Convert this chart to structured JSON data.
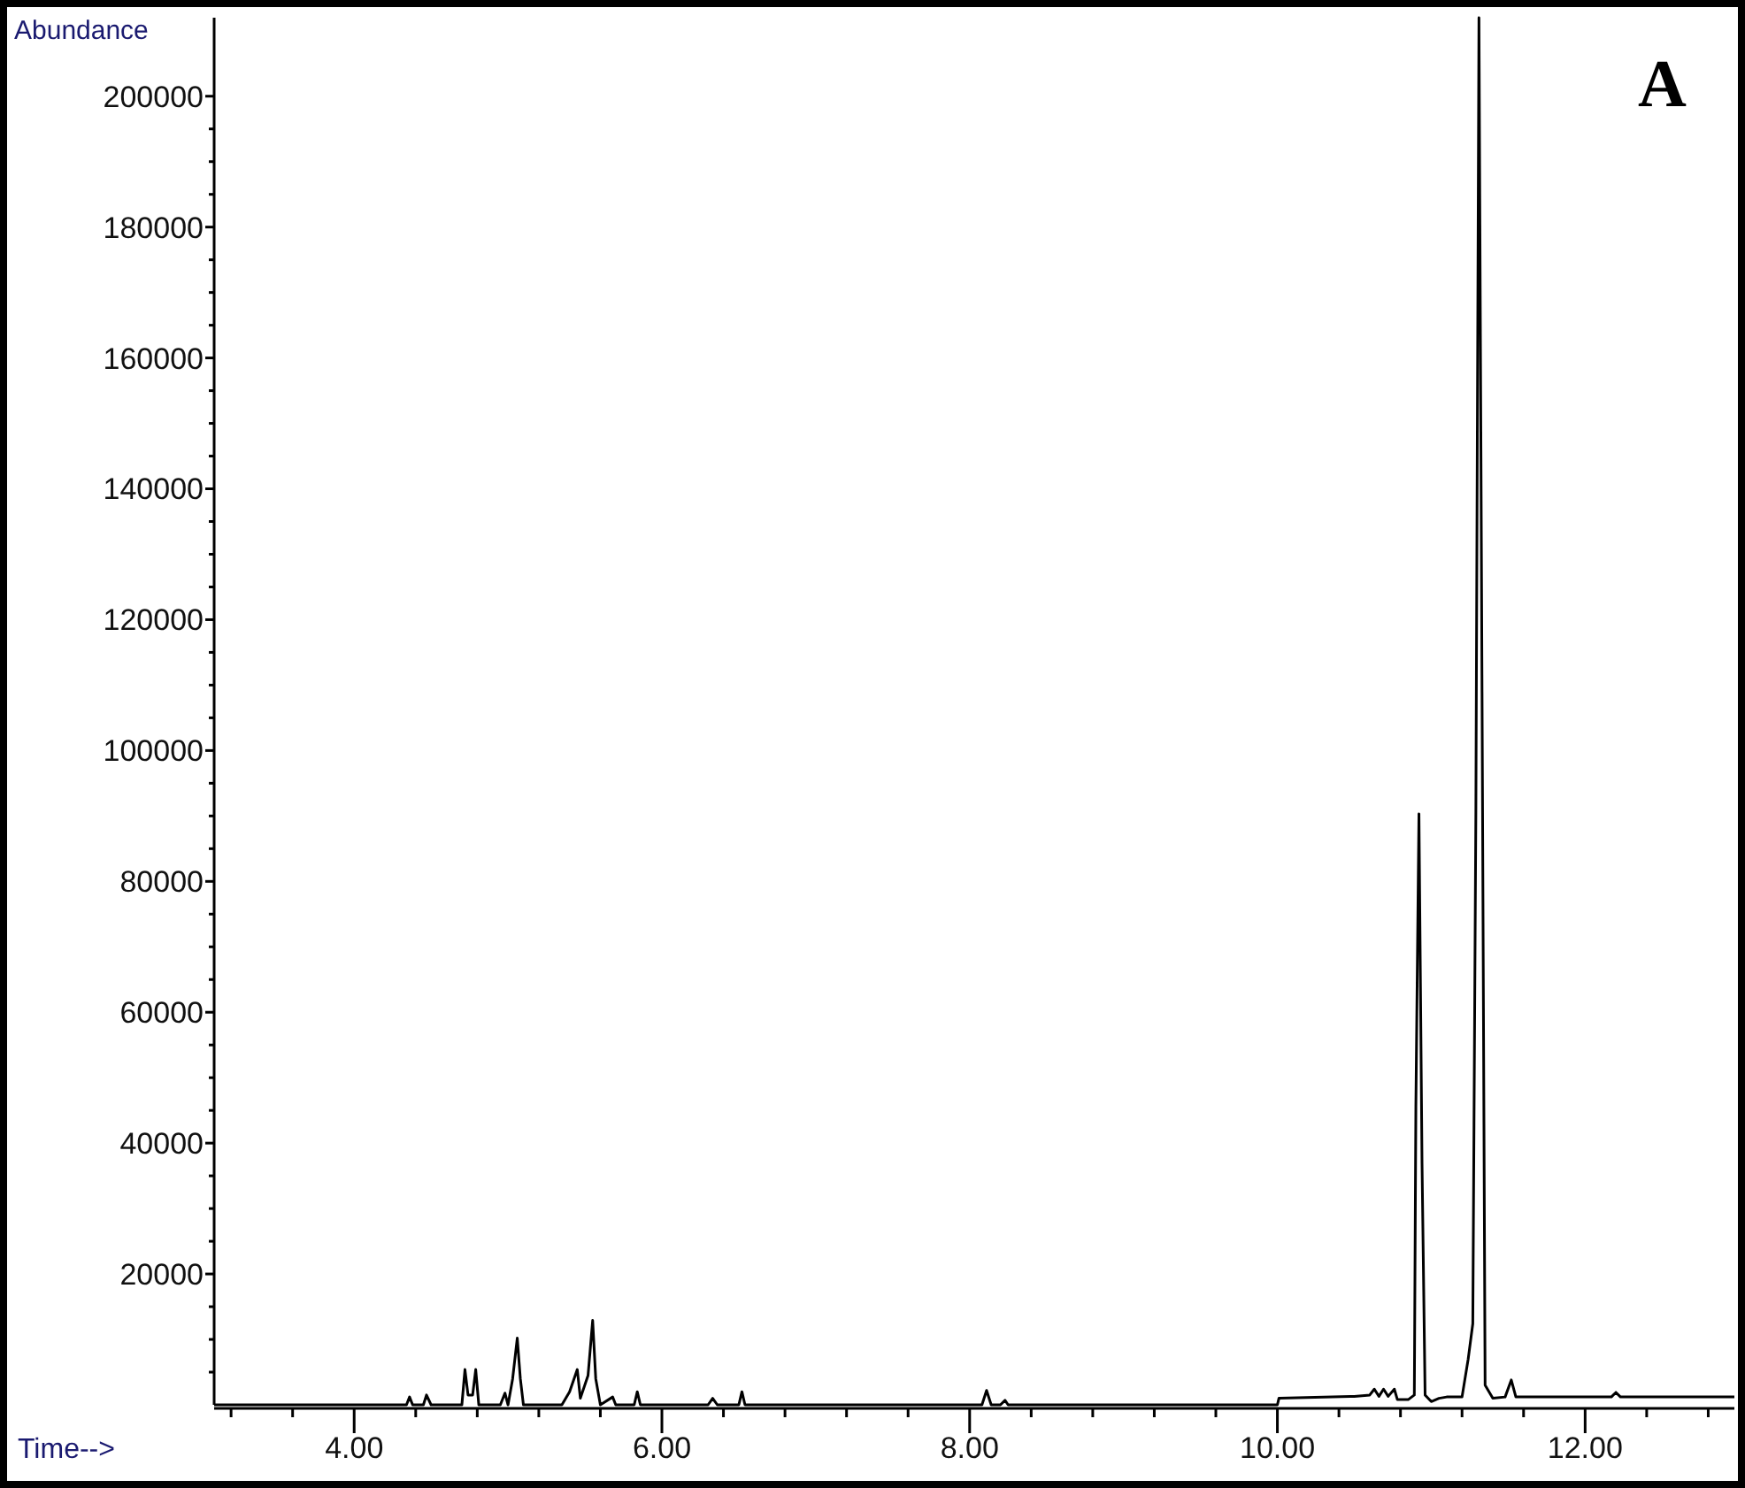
{
  "chart_data": {
    "type": "line",
    "xlabel": "Time-->",
    "ylabel": "Abundance",
    "annotations": [
      "A"
    ],
    "xlim": [
      3.09,
      12.97
    ],
    "ylim": [
      0,
      212000
    ],
    "xticks": [
      {
        "value": 3.2,
        "label": null
      },
      {
        "value": 3.6,
        "label": null
      },
      {
        "value": 4,
        "label": "4.00"
      },
      {
        "value": 4.4,
        "label": null
      },
      {
        "value": 4.8,
        "label": null
      },
      {
        "value": 5.2,
        "label": null
      },
      {
        "value": 5.6,
        "label": null
      },
      {
        "value": 6,
        "label": "6.00"
      },
      {
        "value": 6.4,
        "label": null
      },
      {
        "value": 6.8,
        "label": null
      },
      {
        "value": 7.2,
        "label": null
      },
      {
        "value": 7.6,
        "label": null
      },
      {
        "value": 8,
        "label": "8.00"
      },
      {
        "value": 8.4,
        "label": null
      },
      {
        "value": 8.8,
        "label": null
      },
      {
        "value": 9.2,
        "label": null
      },
      {
        "value": 9.6,
        "label": null
      },
      {
        "value": 10,
        "label": "10.00"
      },
      {
        "value": 10.4,
        "label": null
      },
      {
        "value": 10.8,
        "label": null
      },
      {
        "value": 11.2,
        "label": null
      },
      {
        "value": 11.6,
        "label": null
      },
      {
        "value": 12,
        "label": "12.00"
      },
      {
        "value": 12.4,
        "label": null
      },
      {
        "value": 12.8,
        "label": null
      }
    ],
    "yticks": [
      {
        "value": 5000,
        "label": null
      },
      {
        "value": 10000,
        "label": null
      },
      {
        "value": 15000,
        "label": null
      },
      20000,
      {
        "value": 25000,
        "label": null
      },
      {
        "value": 30000,
        "label": null
      },
      {
        "value": 35000,
        "label": null
      },
      40000,
      {
        "value": 45000,
        "label": null
      },
      {
        "value": 50000,
        "label": null
      },
      {
        "value": 55000,
        "label": null
      },
      60000,
      {
        "value": 65000,
        "label": null
      },
      {
        "value": 70000,
        "label": null
      },
      {
        "value": 75000,
        "label": null
      },
      80000,
      {
        "value": 85000,
        "label": null
      },
      {
        "value": 90000,
        "label": null
      },
      {
        "value": 95000,
        "label": null
      },
      100000,
      {
        "value": 105000,
        "label": null
      },
      {
        "value": 110000,
        "label": null
      },
      {
        "value": 115000,
        "label": null
      },
      120000,
      {
        "value": 125000,
        "label": null
      },
      {
        "value": 130000,
        "label": null
      },
      {
        "value": 135000,
        "label": null
      },
      140000,
      {
        "value": 145000,
        "label": null
      },
      {
        "value": 150000,
        "label": null
      },
      {
        "value": 155000,
        "label": null
      },
      160000,
      {
        "value": 165000,
        "label": null
      },
      {
        "value": 170000,
        "label": null
      },
      {
        "value": 175000,
        "label": null
      },
      180000,
      {
        "value": 185000,
        "label": null
      },
      {
        "value": 190000,
        "label": null
      },
      {
        "value": 195000,
        "label": null
      },
      200000
    ],
    "series": [
      {
        "color": "#000000",
        "x": [
          3.09,
          4.34,
          4.36,
          4.38,
          4.45,
          4.47,
          4.5,
          4.7,
          4.72,
          4.74,
          4.77,
          4.79,
          4.81,
          4.95,
          4.98,
          5.0,
          5.03,
          5.06,
          5.08,
          5.1,
          5.35,
          5.4,
          5.45,
          5.47,
          5.52,
          5.55,
          5.57,
          5.6,
          5.68,
          5.7,
          5.82,
          5.84,
          5.86,
          6.3,
          6.33,
          6.36,
          6.5,
          6.52,
          6.54,
          8.08,
          8.11,
          8.14,
          8.2,
          8.23,
          8.25,
          10.0,
          10.01,
          10.5,
          10.6,
          10.63,
          10.66,
          10.69,
          10.72,
          10.76,
          10.78,
          10.85,
          10.89,
          10.9,
          10.92,
          10.94,
          10.96,
          11.0,
          11.05,
          11.1,
          11.2,
          11.24,
          11.27,
          11.29,
          11.31,
          11.33,
          11.35,
          11.4,
          11.48,
          11.52,
          11.55,
          12.17,
          12.2,
          12.23,
          12.97
        ],
        "values": [
          0,
          0,
          1200,
          0,
          0,
          1500,
          0,
          0,
          5400,
          1500,
          1500,
          5400,
          0,
          0,
          1800,
          0,
          4000,
          10200,
          4000,
          0,
          0,
          2000,
          5400,
          1000,
          4500,
          12900,
          4000,
          0,
          1200,
          0,
          0,
          2000,
          0,
          0,
          1000,
          0,
          0,
          2000,
          0,
          0,
          2200,
          0,
          0,
          700,
          0,
          0,
          1000,
          1300,
          1500,
          2400,
          1300,
          2400,
          1300,
          2400,
          800,
          800,
          1500,
          45500,
          90300,
          36900,
          1500,
          500,
          1000,
          1200,
          1200,
          7000,
          12400,
          90800,
          212000,
          109000,
          3000,
          1000,
          1200,
          3800,
          1200,
          1200,
          1900,
          1200,
          1200
        ]
      }
    ]
  }
}
